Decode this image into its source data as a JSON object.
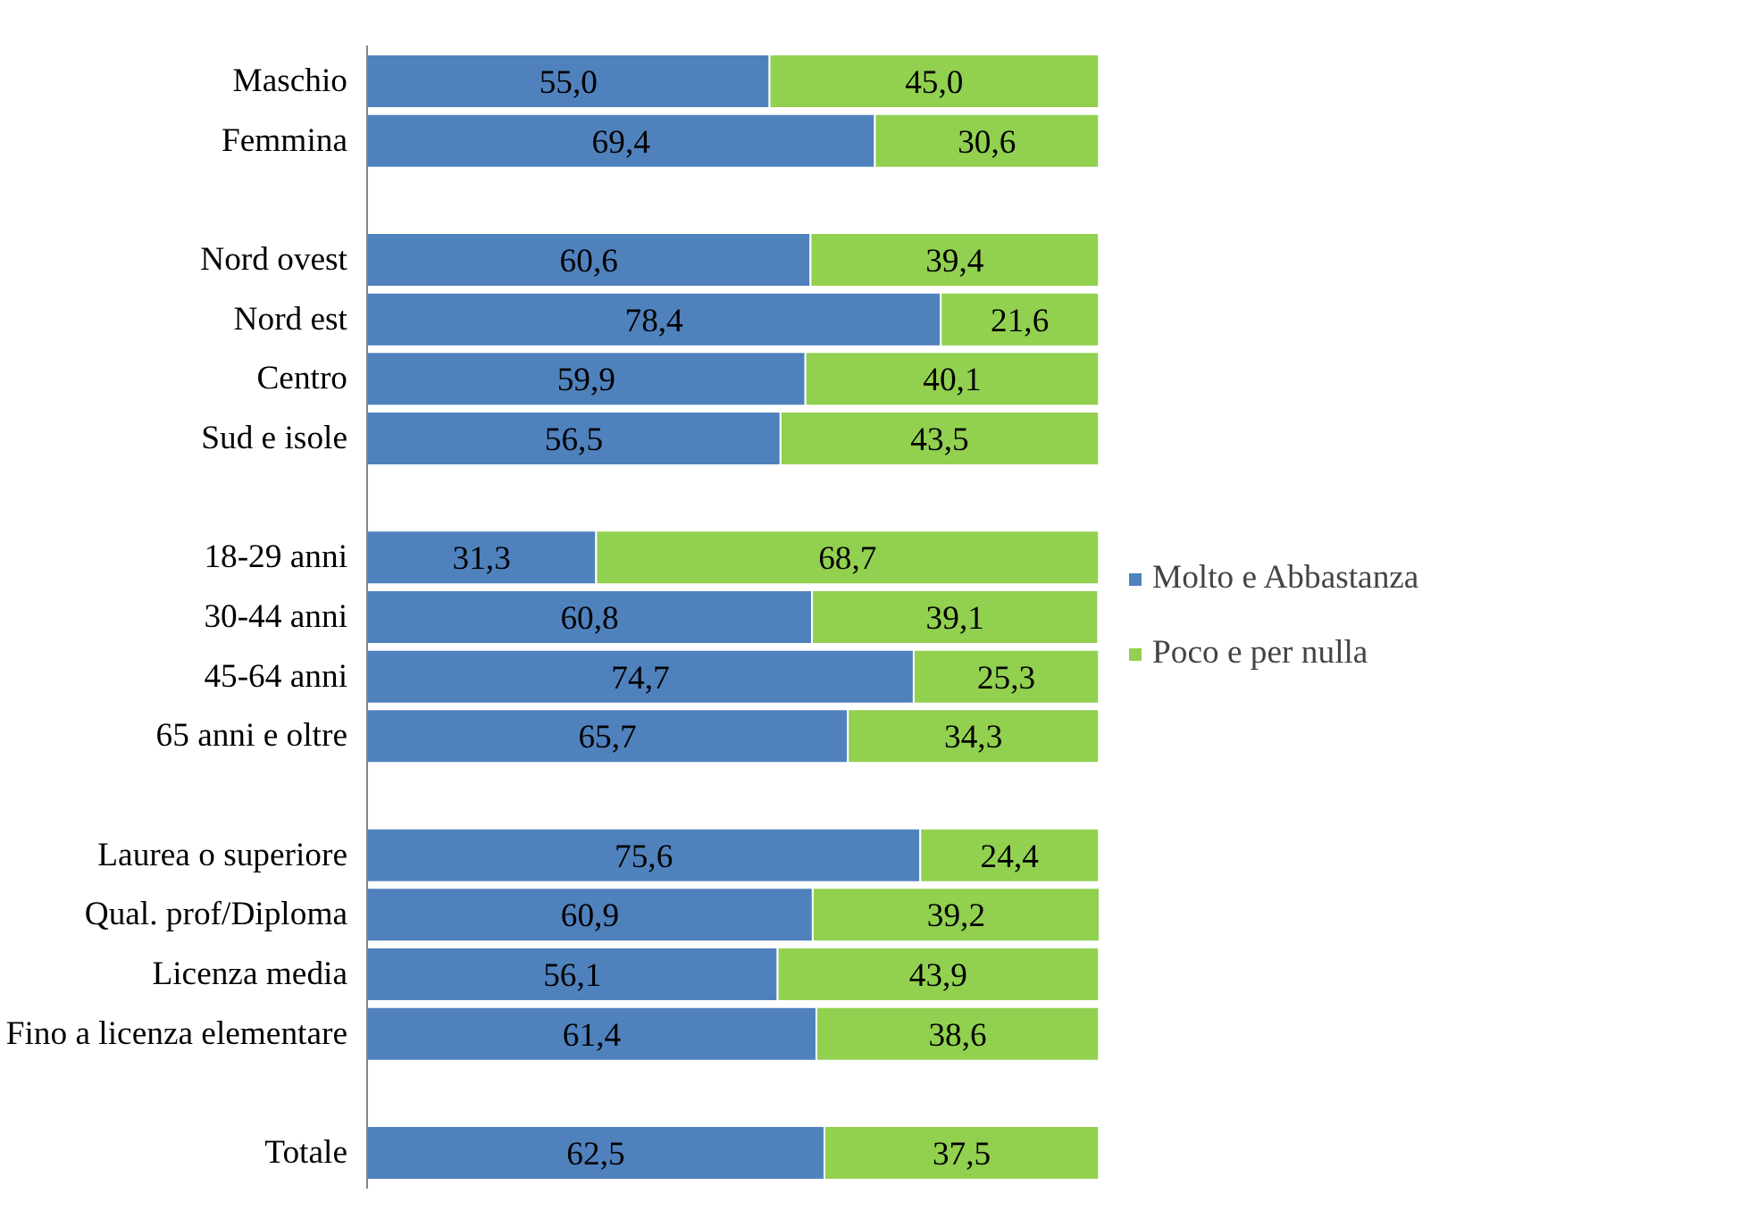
{
  "chart_data": {
    "type": "bar",
    "orientation": "horizontal",
    "stacked": true,
    "legend": "right",
    "grid": false,
    "categories": [
      "Maschio",
      "Femmina",
      null,
      "Nord ovest",
      "Nord est",
      "Centro",
      "Sud e isole",
      null,
      "18-29 anni",
      "30-44 anni",
      "45-64 anni",
      "65 anni e oltre",
      null,
      "Laurea o superiore",
      "Qual. prof/Diploma",
      "Licenza media",
      "Fino a licenza elementare",
      null,
      "Totale"
    ],
    "series": [
      {
        "name": "Molto e Abbastanza",
        "color": "#4f81bd",
        "values": [
          55.0,
          69.4,
          null,
          60.6,
          78.4,
          59.9,
          56.5,
          null,
          31.3,
          60.8,
          74.7,
          65.7,
          null,
          75.6,
          60.9,
          56.1,
          61.4,
          null,
          62.5
        ],
        "value_labels": [
          "55,0",
          "69,4",
          null,
          "60,6",
          "78,4",
          "59,9",
          "56,5",
          null,
          "31,3",
          "60,8",
          "74,7",
          "65,7",
          null,
          "75,6",
          "60,9",
          "56,1",
          "61,4",
          null,
          "62,5"
        ]
      },
      {
        "name": "Poco e per nulla",
        "color": "#92d050",
        "values": [
          45.0,
          30.6,
          null,
          39.4,
          21.6,
          40.1,
          43.5,
          null,
          68.7,
          39.1,
          25.3,
          34.3,
          null,
          24.4,
          39.2,
          43.9,
          38.6,
          null,
          37.5
        ],
        "value_labels": [
          "45,0",
          "30,6",
          null,
          "39,4",
          "21,6",
          "40,1",
          "43,5",
          null,
          "68,7",
          "39,1",
          "25,3",
          "34,3",
          null,
          "24,4",
          "39,2",
          "43,9",
          "38,6",
          null,
          "37,5"
        ]
      }
    ]
  }
}
